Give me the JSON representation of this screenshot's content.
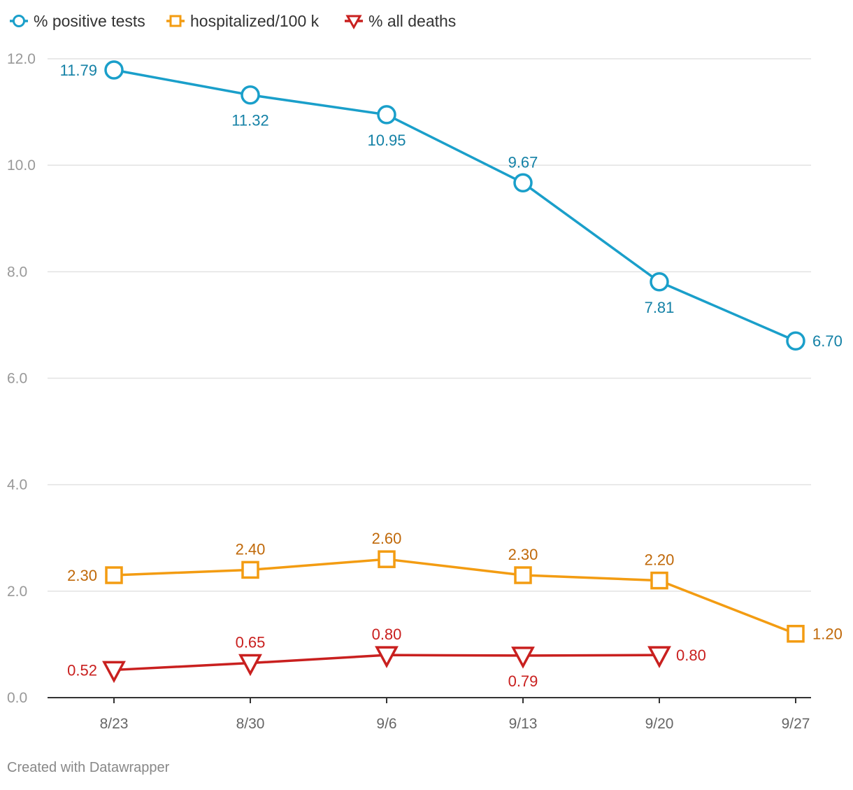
{
  "chart_data": {
    "type": "line",
    "categories": [
      "8/23",
      "8/30",
      "9/6",
      "9/13",
      "9/20",
      "9/27"
    ],
    "yticks": [
      "0.0",
      "2.0",
      "4.0",
      "6.0",
      "8.0",
      "10.0",
      "12.0"
    ],
    "ylim": [
      0,
      12
    ],
    "grid": true,
    "legend_position": "top-left",
    "series": [
      {
        "name": "% positive tests",
        "marker": "circle",
        "color": "#1a9fca",
        "label_color": "#1481a6",
        "values": [
          11.79,
          11.32,
          10.95,
          9.67,
          7.81,
          6.7
        ],
        "labels": [
          "11.79",
          "11.32",
          "10.95",
          "9.67",
          "7.81",
          "6.70"
        ]
      },
      {
        "name": "hospitalized/100 k",
        "marker": "square",
        "color": "#f39c12",
        "label_color": "#c0690a",
        "values": [
          2.3,
          2.4,
          2.6,
          2.3,
          2.2,
          1.2
        ],
        "labels": [
          "2.30",
          "2.40",
          "2.60",
          "2.30",
          "2.20",
          "1.20"
        ]
      },
      {
        "name": "% all deaths",
        "marker": "triangle-down",
        "color": "#c9201f",
        "label_color": "#c9201f",
        "values": [
          0.52,
          0.65,
          0.8,
          0.79,
          0.8,
          null
        ],
        "labels": [
          "0.52",
          "0.65",
          "0.80",
          "0.79",
          "0.80",
          null
        ]
      }
    ]
  },
  "footer": {
    "credit": "Created with Datawrapper"
  }
}
